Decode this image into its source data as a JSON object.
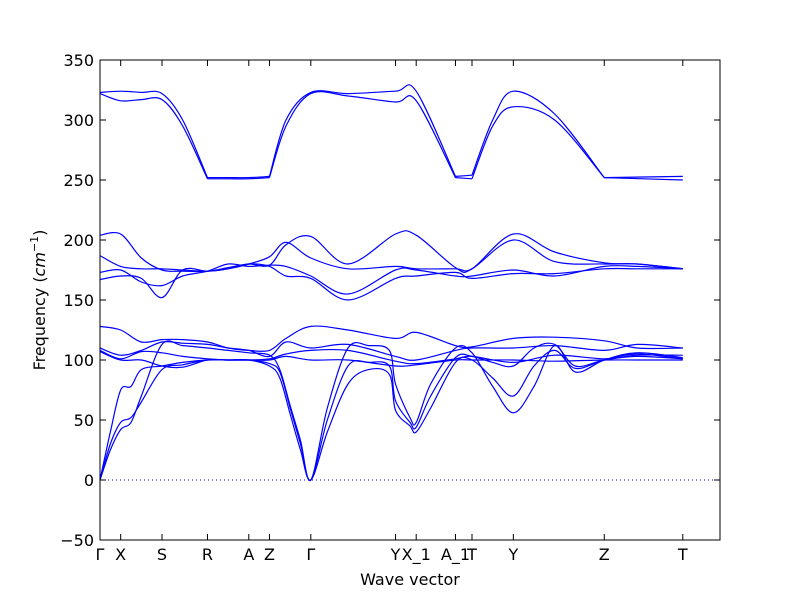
{
  "chart_data": {
    "type": "line",
    "title": "",
    "xlabel": "Wave vector",
    "ylabel": "Frequency (",
    "ylabel_unit": "cm",
    "ylabel_exp": "−1",
    "ylabel_close": ")",
    "ylim": [
      -50,
      350
    ],
    "y_ticks": [
      -50,
      0,
      50,
      100,
      150,
      200,
      250,
      300,
      350
    ],
    "y_tick_labels": [
      "−50",
      "0",
      "50",
      "100",
      "150",
      "200",
      "250",
      "300",
      "350"
    ],
    "xlim": [
      0,
      30
    ],
    "x_ticks": [
      0,
      1,
      3,
      5.2,
      7.2,
      8.2,
      10.2,
      14.3,
      15.3,
      17.2,
      18,
      20,
      24.4,
      28.2
    ],
    "x_tick_labels": [
      "Γ",
      "X",
      "S",
      "R",
      "A",
      "Z",
      "Γ",
      "Y",
      "X_1",
      "A_1",
      "T",
      "Y",
      "Z",
      "T"
    ],
    "grid": false,
    "legend": "none",
    "line_color": "#0000ff",
    "zero_line_color": "#0000ff",
    "series": [
      {
        "x": [
          0,
          1,
          2,
          3,
          4,
          5.2
        ],
        "y": [
          323,
          324,
          323,
          322,
          300,
          252
        ]
      },
      {
        "x": [
          0,
          1,
          2,
          3,
          4,
          5.2
        ],
        "y": [
          322,
          316,
          317,
          317,
          295,
          251
        ]
      },
      {
        "x": [
          5.2,
          6.2,
          7.2,
          8.2
        ],
        "y": [
          252,
          252,
          252,
          253
        ]
      },
      {
        "x": [
          5.2,
          6.2,
          7.2,
          8.2
        ],
        "y": [
          251,
          251,
          251,
          252
        ]
      },
      {
        "x": [
          8.2,
          9,
          10.2,
          12,
          14.3,
          15.3,
          17.2
        ],
        "y": [
          253,
          300,
          323,
          322,
          324,
          324,
          253
        ]
      },
      {
        "x": [
          8.2,
          9,
          10.2,
          12,
          14.3,
          15.3,
          17.2
        ],
        "y": [
          252,
          295,
          322,
          320,
          315,
          316,
          252
        ]
      },
      {
        "x": [
          17.2,
          18
        ],
        "y": [
          253,
          254
        ]
      },
      {
        "x": [
          17.2,
          18
        ],
        "y": [
          252,
          251
        ]
      },
      {
        "x": [
          18,
          19,
          20,
          22,
          24.4
        ],
        "y": [
          254,
          300,
          324,
          305,
          252
        ]
      },
      {
        "x": [
          18,
          19,
          20,
          22,
          24.4
        ],
        "y": [
          251,
          295,
          311,
          300,
          252
        ]
      },
      {
        "x": [
          24.4,
          28.2
        ],
        "y": [
          252,
          253
        ]
      },
      {
        "x": [
          24.4,
          28.2
        ],
        "y": [
          252,
          250
        ]
      },
      {
        "x": [
          0,
          1,
          2,
          3,
          4,
          5.2,
          6.2,
          7.2,
          8.2,
          9,
          10.2,
          12,
          14.3,
          15.3,
          17.2,
          18,
          20,
          22,
          24.4,
          26,
          28.2
        ],
        "y": [
          204,
          205,
          185,
          175,
          174,
          174,
          177,
          180,
          179,
          196,
          203,
          180,
          205,
          204,
          177,
          176,
          205,
          190,
          181,
          180,
          176
        ]
      },
      {
        "x": [
          0,
          1,
          2,
          3,
          4,
          5.2,
          6.2,
          7.2,
          8.2,
          9,
          10.2,
          12,
          14.3,
          15.3,
          17.2,
          18,
          20,
          22,
          24.4,
          26,
          28.2
        ],
        "y": [
          187,
          178,
          176,
          176,
          175,
          174,
          176,
          180,
          186,
          198,
          185,
          176,
          178,
          176,
          176,
          176,
          200,
          182,
          180,
          180,
          176
        ]
      },
      {
        "x": [
          0,
          1,
          2,
          3,
          4,
          5.2,
          6.2,
          7.2,
          8.2,
          9,
          10.2,
          12,
          14.3,
          15.3,
          17.2,
          18,
          20,
          22,
          24.4,
          26,
          28.2
        ],
        "y": [
          173,
          175,
          165,
          162,
          170,
          174,
          180,
          178,
          179,
          178,
          170,
          155,
          175,
          175,
          170,
          170,
          175,
          170,
          178,
          178,
          176
        ]
      },
      {
        "x": [
          0,
          1,
          2,
          3,
          4,
          5.2,
          6.2,
          7.2,
          8.2,
          9,
          10.2,
          12,
          14.3,
          15.3,
          17.2,
          18,
          20,
          22,
          24.4,
          26,
          28.2
        ],
        "y": [
          167,
          170,
          168,
          152,
          175,
          174,
          176,
          180,
          178,
          170,
          168,
          150,
          168,
          170,
          173,
          168,
          172,
          172,
          176,
          176,
          176
        ]
      },
      {
        "x": [
          0,
          1,
          2,
          3,
          4,
          5.2,
          6.2,
          7.2,
          8.2,
          9,
          10.2,
          12,
          14.3,
          15.3,
          17.2,
          18,
          20,
          22,
          24.4,
          26,
          28.2
        ],
        "y": [
          128,
          125,
          115,
          117,
          117,
          115,
          110,
          108,
          108,
          118,
          128,
          125,
          118,
          123,
          112,
          111,
          118,
          119,
          116,
          110,
          110
        ]
      },
      {
        "x": [
          0,
          1,
          2,
          3,
          4,
          5.2,
          6.2,
          7.2,
          8.2,
          9,
          10.2,
          12,
          14.3,
          15.3,
          17.2,
          18,
          20,
          22,
          24.4,
          26,
          28.2
        ],
        "y": [
          110,
          104,
          108,
          115,
          114,
          113,
          110,
          108,
          103,
          115,
          110,
          113,
          103,
          100,
          108,
          110,
          110,
          112,
          108,
          113,
          110
        ]
      },
      {
        "x": [
          0,
          1,
          2,
          3,
          4,
          5.2,
          6.2,
          7.2,
          8.2,
          9,
          10.2,
          12,
          14.3,
          15.3,
          17.2,
          18,
          20,
          22,
          24.4,
          26,
          28.2
        ],
        "y": [
          108,
          101,
          107,
          106,
          103,
          101,
          100,
          100,
          101,
          105,
          108,
          108,
          99,
          97,
          101,
          103,
          98,
          104,
          101,
          104,
          104
        ]
      },
      {
        "x": [
          0,
          1,
          2,
          3,
          4,
          5.2,
          6.2,
          7.2,
          8.2,
          9,
          10.2,
          12,
          14.3,
          15.3,
          17.2,
          18,
          20,
          22,
          24.4,
          26,
          28.2
        ],
        "y": [
          107,
          100,
          100,
          95,
          94,
          100,
          100,
          100,
          100,
          103,
          100,
          100,
          95,
          96,
          100,
          100,
          100,
          99,
          100,
          100,
          100
        ]
      },
      {
        "x": [
          0,
          0.5,
          1,
          1.5,
          2,
          3,
          4,
          5.2,
          6.2,
          7.2,
          8.2,
          8.7,
          9.2,
          9.7,
          10.2,
          11,
          12,
          13,
          14,
          14.3,
          15,
          15.3,
          16,
          17.2,
          18,
          19,
          20,
          21,
          22,
          23,
          24.4,
          26,
          28.2
        ],
        "y": [
          0,
          40,
          75,
          78,
          92,
          95,
          98,
          100,
          100,
          100,
          97,
          90,
          60,
          30,
          0,
          50,
          95,
          98,
          95,
          66,
          48,
          44,
          70,
          102,
          103,
          98,
          95,
          110,
          113,
          95,
          100,
          103,
          101
        ]
      },
      {
        "x": [
          0,
          0.5,
          1,
          1.5,
          2,
          3,
          4,
          5.2,
          6.2,
          7.2,
          8.2,
          8.7,
          9.2,
          9.7,
          10.2,
          11,
          12,
          13,
          14,
          14.3,
          15,
          15.3,
          16,
          17.2,
          18,
          19,
          20,
          21,
          22,
          23,
          24.4,
          26,
          28.2
        ],
        "y": [
          0,
          30,
          48,
          52,
          65,
          92,
          96,
          100,
          100,
          100,
          95,
          85,
          55,
          25,
          0,
          40,
          80,
          92,
          88,
          58,
          45,
          40,
          60,
          98,
          100,
          85,
          70,
          95,
          108,
          93,
          100,
          105,
          101
        ]
      },
      {
        "x": [
          0,
          0.5,
          1,
          1.5,
          2,
          3,
          4,
          5.2,
          6.2,
          7.2,
          8.2,
          8.7,
          9.2,
          9.7,
          10.2,
          11,
          12,
          13,
          14,
          14.3,
          15,
          15.3,
          16,
          17.2,
          18,
          19,
          20,
          21,
          22,
          23,
          24.4,
          26,
          28.2
        ],
        "y": [
          0,
          25,
          42,
          48,
          70,
          113,
          112,
          110,
          108,
          106,
          104,
          92,
          62,
          33,
          0,
          60,
          110,
          112,
          108,
          80,
          52,
          48,
          80,
          110,
          106,
          78,
          56,
          78,
          112,
          90,
          100,
          106,
          102
        ]
      }
    ]
  }
}
